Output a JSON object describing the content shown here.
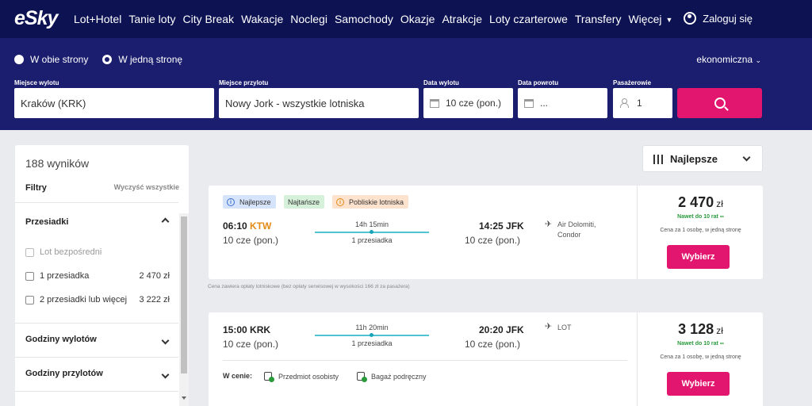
{
  "nav": {
    "logo": "eSky",
    "items": [
      "Lot+Hotel",
      "Tanie loty",
      "City Break",
      "Wakacje",
      "Noclegi",
      "Samochody",
      "Okazje",
      "Atrakcje",
      "Loty czarterowe",
      "Transfery",
      "Więcej"
    ],
    "login": "Zaloguj się"
  },
  "search": {
    "trip_types": [
      "W obie strony",
      "W jedną stronę"
    ],
    "selected_trip_type": "W jedną stronę",
    "cabin": "ekonomiczna",
    "origin_label": "Miejsce wylotu",
    "origin": "Kraków (KRK)",
    "destination_label": "Miejsce przylotu",
    "destination": "Nowy Jork - wszystkie lotniska",
    "depart_label": "Data wylotu",
    "depart": "10 cze (pon.)",
    "return_label": "Data powrotu",
    "return": "...",
    "pax_label": "Pasażerowie",
    "pax": "1"
  },
  "sidebar": {
    "results_count": "188 wyników",
    "filters_label": "Filtry",
    "clear_all": "Wyczyść wszystkie",
    "stops_section": "Przesiadki",
    "stop_options": [
      {
        "label": "Lot bezpośredni",
        "price": "",
        "disabled": true
      },
      {
        "label": "1 przesiadka",
        "price": "2 470 zł",
        "disabled": false
      },
      {
        "label": "2 przesiadki lub więcej",
        "price": "3 222 zł",
        "disabled": false
      }
    ],
    "departure_times": "Godziny wylotów",
    "arrival_times": "Godziny przylotów"
  },
  "sort": {
    "label": "Najlepsze"
  },
  "results": [
    {
      "badges": [
        "Najlepsze",
        "Najtańsze",
        "Pobliskie lotniska"
      ],
      "dep_time": "06:10",
      "dep_airport": "KTW",
      "dep_date": "10 cze (pon.)",
      "duration": "14h 15min",
      "stops": "1 przesiadka",
      "arr_time": "14:25",
      "arr_airport": "JFK",
      "arr_date": "10 cze (pon.)",
      "airline_line1": "Air Dolomiti,",
      "airline_line2": "Condor",
      "price": "2 470",
      "currency": "zł",
      "installments": "Nawet do 10 rat",
      "per_person": "Cena za 1 osobę, w jedną stronę",
      "select": "Wybierz"
    },
    {
      "dep_time": "15:00",
      "dep_airport": "KRK",
      "dep_date": "10 cze (pon.)",
      "duration": "11h 20min",
      "stops": "1 przesiadka",
      "arr_time": "20:20",
      "arr_airport": "JFK",
      "arr_date": "10 cze (pon.)",
      "airline_line1": "LOT",
      "price": "3 128",
      "currency": "zł",
      "installments": "Nawet do 10 rat",
      "per_person": "Cena za 1 osobę, w jedną stronę",
      "select": "Wybierz",
      "included_label": "W cenie:",
      "included": [
        "Przedmiot osobisty",
        "Bagaż podręczny"
      ]
    }
  ],
  "fee_note": "Cena zawiera opłaty lotniskowe (bez opłaty serwisowej w wysokości 166 zł za pasażera)",
  "colors": {
    "nav_bg": "#0c1252",
    "search_bg": "#1b1e6e",
    "accent": "#e2166e",
    "green": "#2a9a3b",
    "alt_airport": "#e38b16"
  }
}
